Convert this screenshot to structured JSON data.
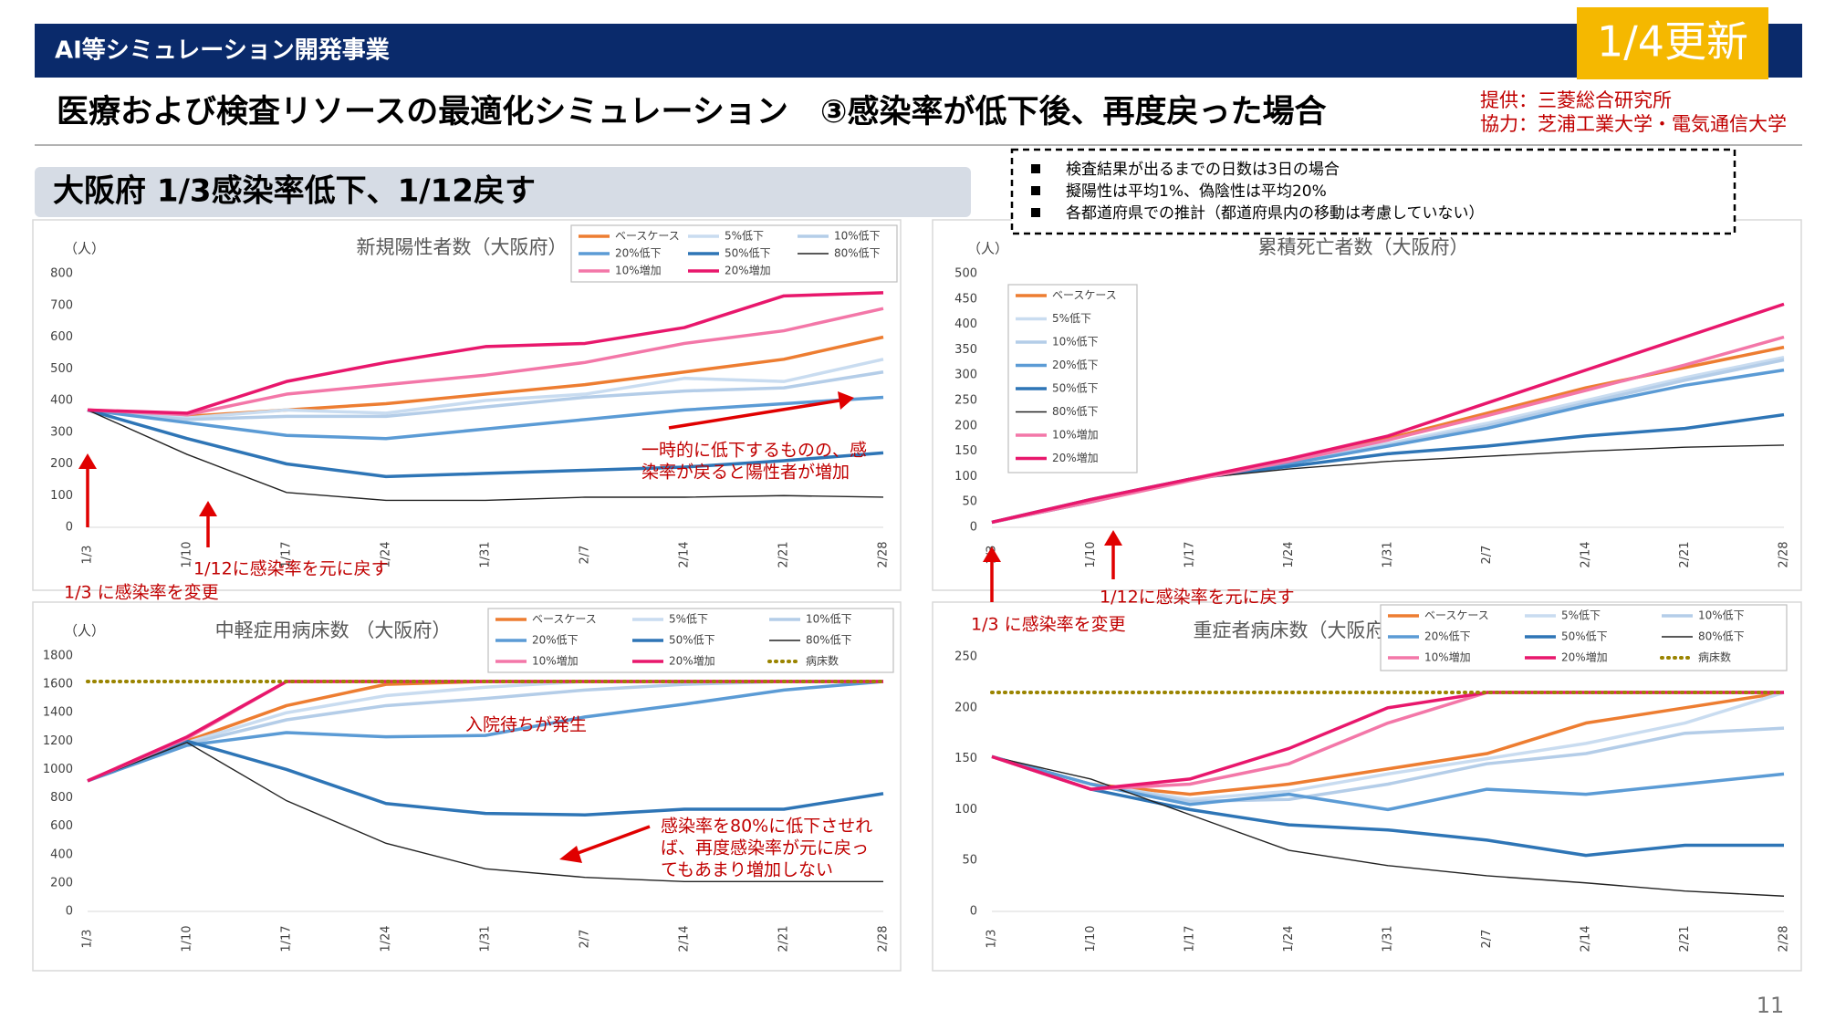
{
  "header": {
    "program": "AI等シミュレーション開発事業",
    "update": "1/4更新",
    "title": "医療および検査リソースの最適化シミュレーション　③感染率が低下後、再度戻った場合",
    "provider": "提供：三菱総合研究所",
    "cooperation": "協力：芝浦工業大学・電気通信大学",
    "section": "大阪府 1/3感染率低下、1/12戻す",
    "notes": [
      "検査結果が出るまでの日数は3日の場合",
      "擬陽性は平均1%、偽陰性は平均20%",
      "各都道府県での推計（都道府県内の移動は考慮していない）"
    ],
    "page": "11"
  },
  "chart_data": [
    {
      "type": "line",
      "title": "新規陽性者数（大阪府）",
      "y_label": "（人）",
      "categories": [
        "1/3",
        "1/10",
        "1/17",
        "1/24",
        "1/31",
        "2/7",
        "2/14",
        "2/21",
        "2/28"
      ],
      "ylim": [
        0,
        800
      ],
      "yticks": [
        0,
        100,
        200,
        300,
        400,
        500,
        600,
        700,
        800
      ],
      "series": [
        {
          "name": "ベースケース",
          "color": "#ed7d31",
          "values": [
            370,
            350,
            370,
            390,
            420,
            450,
            490,
            530,
            600
          ]
        },
        {
          "name": "5%低下",
          "color": "#c9dcf0",
          "values": [
            370,
            345,
            370,
            360,
            400,
            420,
            470,
            460,
            530
          ]
        },
        {
          "name": "10%低下",
          "color": "#b4cde8",
          "values": [
            370,
            340,
            350,
            350,
            380,
            410,
            430,
            440,
            490
          ]
        },
        {
          "name": "20%低下",
          "color": "#5b9bd5",
          "values": [
            370,
            330,
            290,
            280,
            310,
            340,
            370,
            390,
            410
          ]
        },
        {
          "name": "50%低下",
          "color": "#2e75b6",
          "values": [
            370,
            280,
            200,
            160,
            170,
            180,
            190,
            210,
            235
          ]
        },
        {
          "name": "80%低下",
          "color": "#222222",
          "style": "thin",
          "values": [
            370,
            230,
            110,
            85,
            85,
            95,
            95,
            100,
            95
          ]
        },
        {
          "name": "10%増加",
          "color": "#f377a8",
          "values": [
            370,
            355,
            420,
            450,
            480,
            520,
            580,
            620,
            690
          ]
        },
        {
          "name": "20%増加",
          "color": "#e8176c",
          "values": [
            370,
            360,
            460,
            520,
            570,
            580,
            630,
            730,
            740
          ]
        }
      ],
      "annotations": [
        "1/3 に感染率を変更",
        "1/12に感染率を元に戻す",
        [
          "一時的に低下するものの、感",
          "染率が戻ると陽性者が増加"
        ]
      ]
    },
    {
      "type": "line",
      "title": "累積死亡者数（大阪府）",
      "y_label": "（人）",
      "categories": [
        "1/3",
        "1/10",
        "1/17",
        "1/24",
        "1/31",
        "2/7",
        "2/14",
        "2/21",
        "2/28"
      ],
      "ylim": [
        0,
        500
      ],
      "yticks": [
        0,
        50,
        100,
        150,
        200,
        250,
        300,
        350,
        400,
        450,
        500
      ],
      "series": [
        {
          "name": "ベースケース",
          "color": "#ed7d31",
          "values": [
            10,
            50,
            95,
            130,
            175,
            225,
            275,
            315,
            355
          ]
        },
        {
          "name": "5%低下",
          "color": "#c9dcf0",
          "values": [
            10,
            50,
            95,
            128,
            165,
            205,
            250,
            295,
            335
          ]
        },
        {
          "name": "10%低下",
          "color": "#b4cde8",
          "values": [
            10,
            50,
            95,
            128,
            162,
            200,
            245,
            290,
            330
          ]
        },
        {
          "name": "20%低下",
          "color": "#5b9bd5",
          "values": [
            10,
            50,
            95,
            125,
            160,
            195,
            240,
            280,
            310
          ]
        },
        {
          "name": "50%低下",
          "color": "#2e75b6",
          "values": [
            10,
            55,
            95,
            120,
            145,
            160,
            180,
            195,
            222
          ]
        },
        {
          "name": "80%低下",
          "color": "#222222",
          "style": "thin",
          "values": [
            10,
            55,
            95,
            115,
            130,
            140,
            150,
            158,
            162
          ]
        },
        {
          "name": "10%増加",
          "color": "#f377a8",
          "values": [
            10,
            50,
            92,
            130,
            172,
            220,
            270,
            320,
            375
          ]
        },
        {
          "name": "20%増加",
          "color": "#e8176c",
          "values": [
            10,
            55,
            95,
            135,
            180,
            245,
            310,
            375,
            440
          ]
        }
      ],
      "annotations": [
        "1/3 に感染率を変更",
        "1/12に感染率を元に戻す"
      ]
    },
    {
      "type": "line",
      "title": "中軽症用病床数 （大阪府）",
      "y_label": "（人）",
      "categories": [
        "1/3",
        "1/10",
        "1/17",
        "1/24",
        "1/31",
        "2/7",
        "2/14",
        "2/21",
        "2/28"
      ],
      "ylim": [
        0,
        1800
      ],
      "yticks": [
        0,
        200,
        400,
        600,
        800,
        1000,
        1200,
        1400,
        1600,
        1800
      ],
      "series": [
        {
          "name": "ベースケース",
          "color": "#ed7d31",
          "values": [
            920,
            1200,
            1450,
            1600,
            1620,
            1620,
            1620,
            1620,
            1620
          ]
        },
        {
          "name": "5%低下",
          "color": "#c9dcf0",
          "values": [
            920,
            1190,
            1400,
            1520,
            1580,
            1620,
            1620,
            1620,
            1620
          ]
        },
        {
          "name": "10%低下",
          "color": "#b4cde8",
          "values": [
            920,
            1180,
            1350,
            1450,
            1500,
            1560,
            1600,
            1620,
            1620
          ]
        },
        {
          "name": "20%低下",
          "color": "#5b9bd5",
          "values": [
            920,
            1170,
            1260,
            1230,
            1240,
            1370,
            1460,
            1560,
            1620
          ]
        },
        {
          "name": "50%低下",
          "color": "#2e75b6",
          "values": [
            920,
            1200,
            1000,
            760,
            690,
            680,
            720,
            720,
            830
          ]
        },
        {
          "name": "80%低下",
          "color": "#222222",
          "style": "thin",
          "values": [
            920,
            1190,
            780,
            480,
            300,
            240,
            210,
            210,
            210
          ]
        },
        {
          "name": "10%増加",
          "color": "#f377a8",
          "values": [
            920,
            1220,
            1620,
            1620,
            1620,
            1620,
            1620,
            1620,
            1620
          ]
        },
        {
          "name": "20%増加",
          "color": "#e8176c",
          "values": [
            920,
            1230,
            1620,
            1620,
            1620,
            1620,
            1620,
            1620,
            1620
          ]
        },
        {
          "name": "病床数",
          "color": "#9a8400",
          "style": "dotted",
          "values": [
            1620,
            1620,
            1620,
            1620,
            1620,
            1620,
            1620,
            1620,
            1620
          ]
        }
      ],
      "annotations": [
        "入院待ちが発生",
        [
          "感染率を80%に低下させれ",
          "ば、再度感染率が元に戻っ",
          "てもあまり増加しない"
        ]
      ]
    },
    {
      "type": "line",
      "title": "重症者病床数（大阪府）",
      "categories": [
        "1/3",
        "1/10",
        "1/17",
        "1/24",
        "1/31",
        "2/7",
        "2/14",
        "2/21",
        "2/28"
      ],
      "ylim": [
        0,
        250
      ],
      "yticks": [
        0,
        50,
        100,
        150,
        200,
        250
      ],
      "series": [
        {
          "name": "ベースケース",
          "color": "#ed7d31",
          "values": [
            152,
            125,
            115,
            125,
            140,
            155,
            185,
            200,
            215
          ]
        },
        {
          "name": "5%低下",
          "color": "#c9dcf0",
          "values": [
            152,
            125,
            110,
            118,
            135,
            150,
            165,
            185,
            215
          ]
        },
        {
          "name": "10%低下",
          "color": "#b4cde8",
          "values": [
            152,
            125,
            108,
            110,
            125,
            145,
            155,
            175,
            180
          ]
        },
        {
          "name": "20%低下",
          "color": "#5b9bd5",
          "values": [
            152,
            125,
            105,
            115,
            100,
            120,
            115,
            125,
            135
          ]
        },
        {
          "name": "50%低下",
          "color": "#2e75b6",
          "values": [
            152,
            120,
            100,
            85,
            80,
            70,
            55,
            65,
            65
          ]
        },
        {
          "name": "80%低下",
          "color": "#222222",
          "style": "thin",
          "values": [
            152,
            130,
            95,
            60,
            45,
            35,
            28,
            20,
            15
          ]
        },
        {
          "name": "10%増加",
          "color": "#f377a8",
          "values": [
            152,
            120,
            125,
            145,
            185,
            215,
            215,
            215,
            215
          ]
        },
        {
          "name": "20%増加",
          "color": "#e8176c",
          "values": [
            152,
            120,
            130,
            160,
            200,
            215,
            215,
            215,
            215
          ]
        },
        {
          "name": "病床数",
          "color": "#9a8400",
          "style": "dotted",
          "values": [
            215,
            215,
            215,
            215,
            215,
            215,
            215,
            215,
            215
          ]
        }
      ]
    }
  ]
}
